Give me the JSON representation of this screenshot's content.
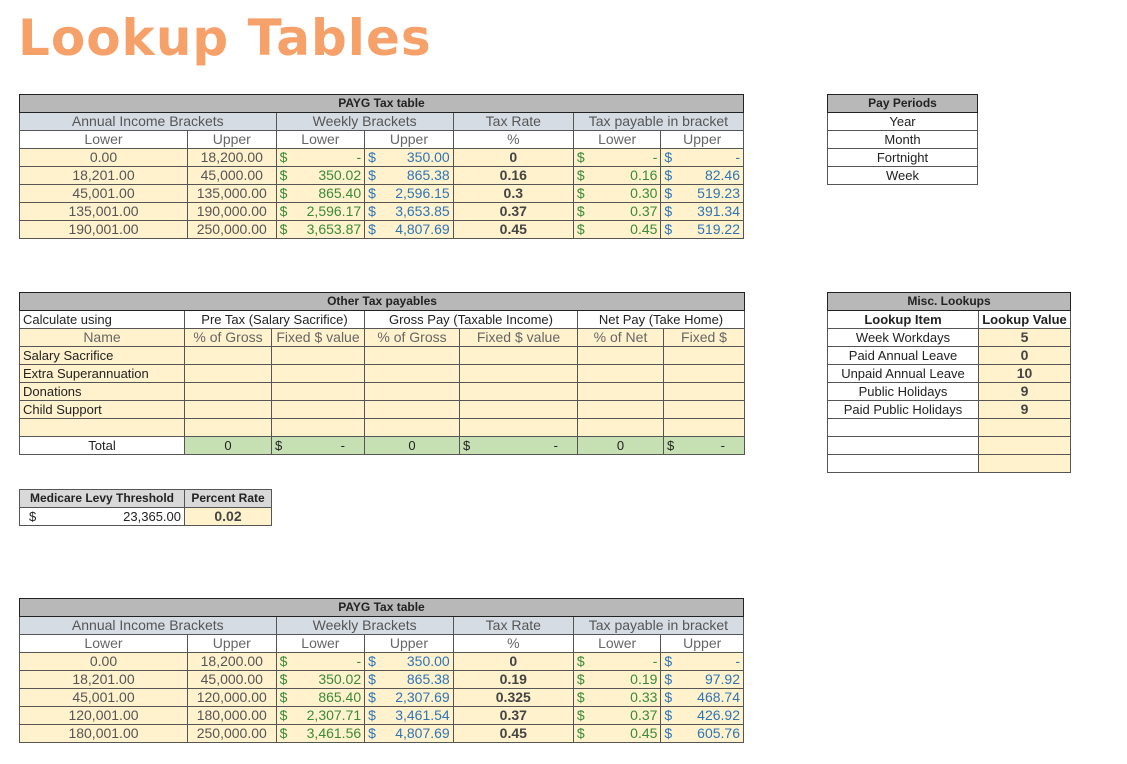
{
  "page_title": "Lookup Tables",
  "payg1": {
    "title": "PAYG Tax table",
    "groups": {
      "annual": "Annual Income Brackets",
      "weekly": "Weekly Brackets",
      "rate": "Tax Rate",
      "payable": "Tax payable in bracket"
    },
    "subs": {
      "a_lower": "Lower",
      "a_upper": "Upper",
      "w_lower": "Lower",
      "w_upper": "Upper",
      "pct": "%",
      "p_lower": "Lower",
      "p_upper": "Upper"
    },
    "rows": [
      {
        "a_lower": "0.00",
        "a_upper": "18,200.00",
        "w_lower": "-",
        "w_upper": "350.00",
        "rate": "0",
        "p_lower": "-",
        "p_upper": "-"
      },
      {
        "a_lower": "18,201.00",
        "a_upper": "45,000.00",
        "w_lower": "350.02",
        "w_upper": "865.38",
        "rate": "0.16",
        "p_lower": "0.16",
        "p_upper": "82.46"
      },
      {
        "a_lower": "45,001.00",
        "a_upper": "135,000.00",
        "w_lower": "865.40",
        "w_upper": "2,596.15",
        "rate": "0.3",
        "p_lower": "0.30",
        "p_upper": "519.23"
      },
      {
        "a_lower": "135,001.00",
        "a_upper": "190,000.00",
        "w_lower": "2,596.17",
        "w_upper": "3,653.85",
        "rate": "0.37",
        "p_lower": "0.37",
        "p_upper": "391.34"
      },
      {
        "a_lower": "190,001.00",
        "a_upper": "250,000.00",
        "w_lower": "3,653.87",
        "w_upper": "4,807.69",
        "rate": "0.45",
        "p_lower": "0.45",
        "p_upper": "519.22"
      }
    ]
  },
  "payg2": {
    "title": "PAYG Tax table",
    "groups": {
      "annual": "Annual Income Brackets",
      "weekly": "Weekly Brackets",
      "rate": "Tax Rate",
      "payable": "Tax payable in bracket"
    },
    "subs": {
      "a_lower": "Lower",
      "a_upper": "Upper",
      "w_lower": "Lower",
      "w_upper": "Upper",
      "pct": "%",
      "p_lower": "Lower",
      "p_upper": "Upper"
    },
    "rows": [
      {
        "a_lower": "0.00",
        "a_upper": "18,200.00",
        "w_lower": "-",
        "w_upper": "350.00",
        "rate": "0",
        "p_lower": "-",
        "p_upper": "-"
      },
      {
        "a_lower": "18,201.00",
        "a_upper": "45,000.00",
        "w_lower": "350.02",
        "w_upper": "865.38",
        "rate": "0.19",
        "p_lower": "0.19",
        "p_upper": "97.92"
      },
      {
        "a_lower": "45,001.00",
        "a_upper": "120,000.00",
        "w_lower": "865.40",
        "w_upper": "2,307.69",
        "rate": "0.325",
        "p_lower": "0.33",
        "p_upper": "468.74"
      },
      {
        "a_lower": "120,001.00",
        "a_upper": "180,000.00",
        "w_lower": "2,307.71",
        "w_upper": "3,461.54",
        "rate": "0.37",
        "p_lower": "0.37",
        "p_upper": "426.92"
      },
      {
        "a_lower": "180,001.00",
        "a_upper": "250,000.00",
        "w_lower": "3,461.56",
        "w_upper": "4,807.69",
        "rate": "0.45",
        "p_lower": "0.45",
        "p_upper": "605.76"
      }
    ]
  },
  "currency": "$",
  "pay_periods": {
    "title": "Pay Periods",
    "items": [
      "Year",
      "Month",
      "Fortnight",
      "Week"
    ]
  },
  "other_tax": {
    "title": "Other Tax payables",
    "calc_label": "Calculate using",
    "groups": {
      "pre": "Pre Tax (Salary Sacrifice)",
      "gross": "Gross Pay  (Taxable Income)",
      "net": "Net Pay (Take Home)"
    },
    "subs": {
      "name": "Name",
      "pre_pct": "% of Gross",
      "pre_fixed": "Fixed $ value",
      "gross_pct": "% of Gross",
      "gross_fixed": "Fixed $ value",
      "net_pct": "% of Net",
      "net_fixed": "Fixed $"
    },
    "rows": [
      "Salary Sacrifice",
      "Extra Superannuation",
      "Donations",
      "Child Support"
    ],
    "total": {
      "label": "Total",
      "pre_pct": "0",
      "pre_fixed": "-",
      "gross_pct": "0",
      "gross_fixed": "-",
      "net_pct": "0",
      "net_fixed": "-"
    }
  },
  "misc": {
    "title": "Misc. Lookups",
    "col_item": "Lookup Item",
    "col_value": "Lookup Value",
    "rows": [
      {
        "item": "Week Workdays",
        "value": "5"
      },
      {
        "item": "Paid Annual Leave",
        "value": "0"
      },
      {
        "item": "Unpaid Annual Leave",
        "value": "10"
      },
      {
        "item": "Public Holidays",
        "value": "9"
      },
      {
        "item": "Paid Public Holidays",
        "value": "9"
      }
    ]
  },
  "medicare": {
    "col_threshold": "Medicare Levy Threshold",
    "col_rate": "Percent Rate",
    "threshold": "23,365.00",
    "rate": "0.02"
  }
}
